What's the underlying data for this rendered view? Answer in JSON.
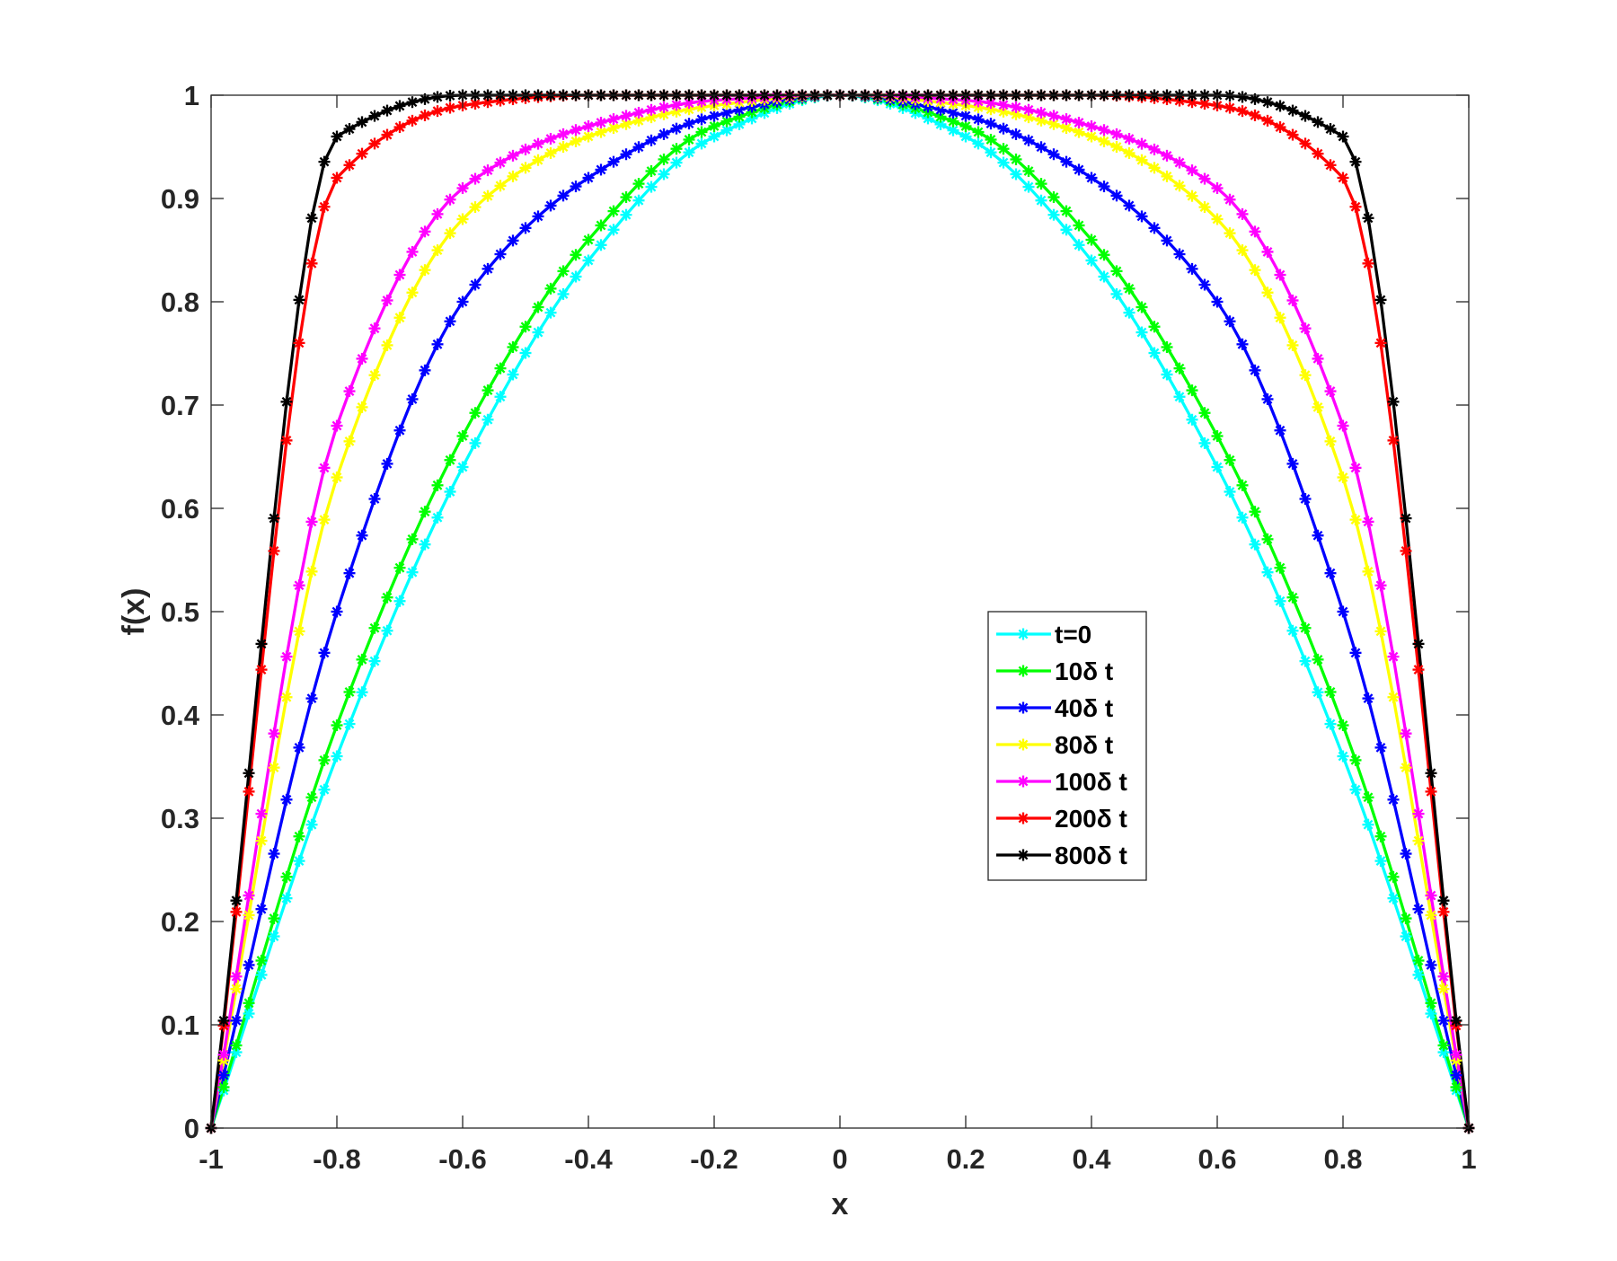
{
  "chart_data": {
    "type": "line",
    "title": "",
    "xlabel": "x",
    "ylabel": "f(x)",
    "xlim": [
      -1,
      1
    ],
    "ylim": [
      0,
      1
    ],
    "xticks": [
      "-1",
      "-0.8",
      "-0.6",
      "-0.4",
      "-0.2",
      "0",
      "0.2",
      "0.4",
      "0.6",
      "0.8",
      "1"
    ],
    "yticks": [
      "0",
      "0.1",
      "0.2",
      "0.3",
      "0.4",
      "0.5",
      "0.6",
      "0.7",
      "0.8",
      "0.9",
      "1"
    ],
    "grid": false,
    "legend_position": "center-right",
    "marker": "asterisk",
    "series": [
      {
        "name": "t=0",
        "color": "#00ffff",
        "x": [
          -1,
          -0.8,
          -0.6,
          -0.4,
          -0.2,
          0,
          0.2,
          0.4,
          0.6,
          0.8,
          1
        ],
        "y": [
          0,
          0.36,
          0.64,
          0.84,
          0.96,
          1,
          0.96,
          0.84,
          0.64,
          0.36,
          0
        ]
      },
      {
        "name": "10δ t",
        "color": "#00ff00",
        "x": [
          -1,
          -0.8,
          -0.6,
          -0.4,
          -0.2,
          0,
          0.2,
          0.4,
          0.6,
          0.8,
          1
        ],
        "y": [
          0,
          0.39,
          0.67,
          0.86,
          0.97,
          1,
          0.97,
          0.86,
          0.67,
          0.39,
          0
        ]
      },
      {
        "name": "40δ t",
        "color": "#0000ff",
        "x": [
          -1,
          -0.8,
          -0.6,
          -0.4,
          -0.2,
          0,
          0.2,
          0.4,
          0.6,
          0.8,
          1
        ],
        "y": [
          0,
          0.5,
          0.8,
          0.92,
          0.98,
          1,
          0.98,
          0.92,
          0.8,
          0.5,
          0
        ]
      },
      {
        "name": "80δ t",
        "color": "#ffff00",
        "x": [
          -1,
          -0.8,
          -0.6,
          -0.4,
          -0.2,
          0,
          0.2,
          0.4,
          0.6,
          0.8,
          1
        ],
        "y": [
          0,
          0.63,
          0.88,
          0.96,
          0.99,
          1,
          0.99,
          0.96,
          0.88,
          0.63,
          0
        ]
      },
      {
        "name": "100δ t",
        "color": "#ff00ff",
        "x": [
          -1,
          -0.8,
          -0.6,
          -0.4,
          -0.2,
          0,
          0.2,
          0.4,
          0.6,
          0.8,
          1
        ],
        "y": [
          0,
          0.68,
          0.91,
          0.97,
          0.995,
          1,
          0.995,
          0.97,
          0.91,
          0.68,
          0
        ]
      },
      {
        "name": "200δ t",
        "color": "#ff0000",
        "x": [
          -1,
          -0.8,
          -0.6,
          -0.4,
          -0.2,
          0,
          0.2,
          0.4,
          0.6,
          0.8,
          1
        ],
        "y": [
          0,
          0.92,
          0.99,
          1,
          1,
          1,
          1,
          1,
          0.99,
          0.92,
          0
        ]
      },
      {
        "name": "800δ t",
        "color": "#000000",
        "x": [
          -1,
          -0.8,
          -0.6,
          -0.4,
          -0.2,
          0,
          0.2,
          0.4,
          0.6,
          0.8,
          1
        ],
        "y": [
          0,
          0.96,
          1,
          1,
          1,
          1,
          1,
          1,
          1,
          0.96,
          0
        ]
      }
    ]
  }
}
